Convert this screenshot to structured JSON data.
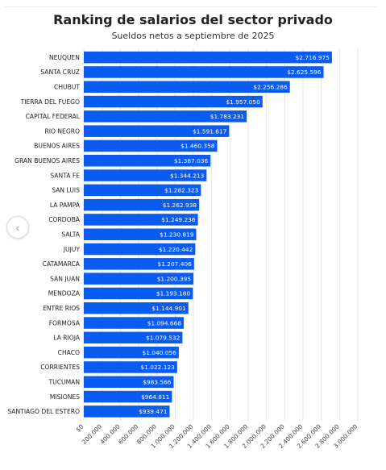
{
  "colors": {
    "bar": "#0a5cf0",
    "grid": "#e6e6e6",
    "label": "#222222",
    "bar_text": "#ffffff"
  },
  "nav": {
    "prev_icon": "chevron-left-icon",
    "prev_glyph": "‹"
  },
  "chart_data": {
    "type": "bar",
    "orientation": "horizontal",
    "title": "Ranking de salarios del sector privado",
    "subtitle": "Sueldos netos a septiembre de 2025",
    "grid": true,
    "xlim": [
      0,
      3000000
    ],
    "x_ticks": [
      {
        "value": 0,
        "label": "$0"
      },
      {
        "value": 200000,
        "label": "200.000"
      },
      {
        "value": 400000,
        "label": "400.000"
      },
      {
        "value": 600000,
        "label": "600.000"
      },
      {
        "value": 800000,
        "label": "800.000"
      },
      {
        "value": 1000000,
        "label": "1.000.000"
      },
      {
        "value": 1200000,
        "label": "1.200.000"
      },
      {
        "value": 1400000,
        "label": "1.400.000"
      },
      {
        "value": 1600000,
        "label": "1.600.000"
      },
      {
        "value": 1800000,
        "label": "1.800.000"
      },
      {
        "value": 2000000,
        "label": "2.000.000"
      },
      {
        "value": 2200000,
        "label": "2.200.000"
      },
      {
        "value": 2400000,
        "label": "2.400.000"
      },
      {
        "value": 2600000,
        "label": "2.600.000"
      },
      {
        "value": 2800000,
        "label": "2.800.000"
      },
      {
        "value": 3000000,
        "label": "3.000.000"
      }
    ],
    "categories": [
      "NEUQUEN",
      "SANTA CRUZ",
      "CHUBUT",
      "TIERRA DEL FUEGO",
      "CAPITAL FEDERAL",
      "RIO NEGRO",
      "BUENOS AIRES",
      "GRAN BUENOS AIRES",
      "SANTA FE",
      "SAN LUIS",
      "LA PAMPA",
      "CORDOBA",
      "SALTA",
      "JUJUY",
      "CATAMARCA",
      "SAN JUAN",
      "MENDOZA",
      "ENTRE RIOS",
      "FORMOSA",
      "LA RIOJA",
      "CHACO",
      "CORRIENTES",
      "TUCUMAN",
      "MISIONES",
      "SANTIAGO DEL ESTERO"
    ],
    "values": [
      2716975,
      2625596,
      2256286,
      1957050,
      1783231,
      1591617,
      1460358,
      1387036,
      1344213,
      1282323,
      1262938,
      1249236,
      1230819,
      1220442,
      1207406,
      1200395,
      1193180,
      1144901,
      1094668,
      1079532,
      1040056,
      1022123,
      983566,
      964811,
      939471
    ],
    "value_labels": [
      "$2.716.975",
      "$2.625.596",
      "$2.256.286",
      "$1.957.050",
      "$1.783.231",
      "$1.591.617",
      "$1.460.358",
      "$1.387.036",
      "$1.344.213",
      "$1.282.323",
      "$1.262.938",
      "$1.249.236",
      "$1.230.819",
      "$1.220.442",
      "$1.207.406",
      "$1.200.395",
      "$1.193.180",
      "$1.144.901",
      "$1.094.668",
      "$1.079.532",
      "$1.040.056",
      "$1.022.123",
      "$983.566",
      "$964.811",
      "$939.471"
    ]
  }
}
